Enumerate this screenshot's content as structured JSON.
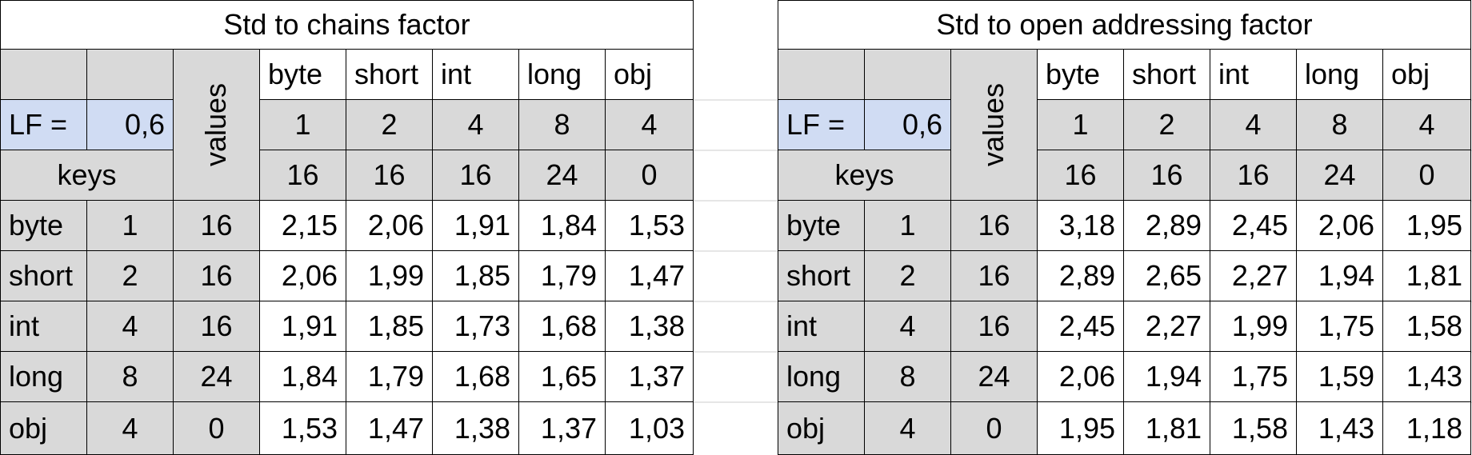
{
  "tables": [
    {
      "title": "Std to chains factor",
      "lf_label": "LF =",
      "lf_value": "0,6",
      "values_label": "values",
      "keys_label": "keys",
      "col_types": [
        "byte",
        "short",
        "int",
        "long",
        "obj"
      ],
      "col_sizes": [
        "1",
        "2",
        "4",
        "8",
        "4"
      ],
      "col_overhead": [
        "16",
        "16",
        "16",
        "24",
        "0"
      ],
      "rows": [
        {
          "type": "byte",
          "size": "1",
          "overhead": "16",
          "values": [
            "2,15",
            "2,06",
            "1,91",
            "1,84",
            "1,53"
          ]
        },
        {
          "type": "short",
          "size": "2",
          "overhead": "16",
          "values": [
            "2,06",
            "1,99",
            "1,85",
            "1,79",
            "1,47"
          ]
        },
        {
          "type": "int",
          "size": "4",
          "overhead": "16",
          "values": [
            "1,91",
            "1,85",
            "1,73",
            "1,68",
            "1,38"
          ]
        },
        {
          "type": "long",
          "size": "8",
          "overhead": "24",
          "values": [
            "1,84",
            "1,79",
            "1,68",
            "1,65",
            "1,37"
          ]
        },
        {
          "type": "obj",
          "size": "4",
          "overhead": "0",
          "values": [
            "1,53",
            "1,47",
            "1,38",
            "1,37",
            "1,03"
          ]
        }
      ]
    },
    {
      "title": "Std to open addressing factor",
      "lf_label": "LF =",
      "lf_value": "0,6",
      "values_label": "values",
      "keys_label": "keys",
      "col_types": [
        "byte",
        "short",
        "int",
        "long",
        "obj"
      ],
      "col_sizes": [
        "1",
        "2",
        "4",
        "8",
        "4"
      ],
      "col_overhead": [
        "16",
        "16",
        "16",
        "24",
        "0"
      ],
      "rows": [
        {
          "type": "byte",
          "size": "1",
          "overhead": "16",
          "values": [
            "3,18",
            "2,89",
            "2,45",
            "2,06",
            "1,95"
          ]
        },
        {
          "type": "short",
          "size": "2",
          "overhead": "16",
          "values": [
            "2,89",
            "2,65",
            "2,27",
            "1,94",
            "1,81"
          ]
        },
        {
          "type": "int",
          "size": "4",
          "overhead": "16",
          "values": [
            "2,45",
            "2,27",
            "1,99",
            "1,75",
            "1,58"
          ]
        },
        {
          "type": "long",
          "size": "8",
          "overhead": "24",
          "values": [
            "2,06",
            "1,94",
            "1,75",
            "1,59",
            "1,43"
          ]
        },
        {
          "type": "obj",
          "size": "4",
          "overhead": "0",
          "values": [
            "1,95",
            "1,81",
            "1,58",
            "1,43",
            "1,18"
          ]
        }
      ]
    }
  ]
}
